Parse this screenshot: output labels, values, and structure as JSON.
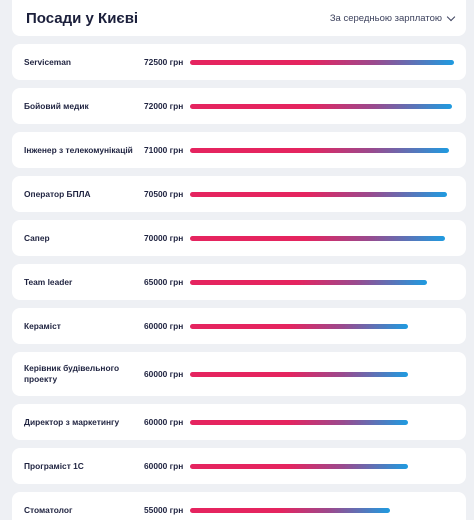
{
  "header": {
    "title": "Посади у Києві",
    "sort_label": "За середньою зарплатою"
  },
  "colors": {
    "bar_start": "#e5245f",
    "bar_mid": "#9a4a8e",
    "bar_end": "#1f9be0",
    "background": "#eef0f4",
    "card": "#ffffff"
  },
  "positions": [
    {
      "name": "Serviceman",
      "salary": "72500 грн",
      "value": 72500
    },
    {
      "name": "Бойовий медик",
      "salary": "72000 грн",
      "value": 72000
    },
    {
      "name": "Інженер з телекомунікацій",
      "salary": "71000 грн",
      "value": 71000
    },
    {
      "name": "Оператор БПЛА",
      "salary": "70500 грн",
      "value": 70500
    },
    {
      "name": "Сапер",
      "salary": "70000 грн",
      "value": 70000
    },
    {
      "name": "Team leader",
      "salary": "65000 грн",
      "value": 65000
    },
    {
      "name": "Керамiст",
      "salary": "60000 грн",
      "value": 60000
    },
    {
      "name": "Керівник будівельного проекту",
      "salary": "60000 грн",
      "value": 60000
    },
    {
      "name": "Директор з маркетингу",
      "salary": "60000 грн",
      "value": 60000
    },
    {
      "name": "Програміст 1С",
      "salary": "60000 грн",
      "value": 60000
    },
    {
      "name": "Стоматолог",
      "salary": "55000 грн",
      "value": 55000
    }
  ]
}
